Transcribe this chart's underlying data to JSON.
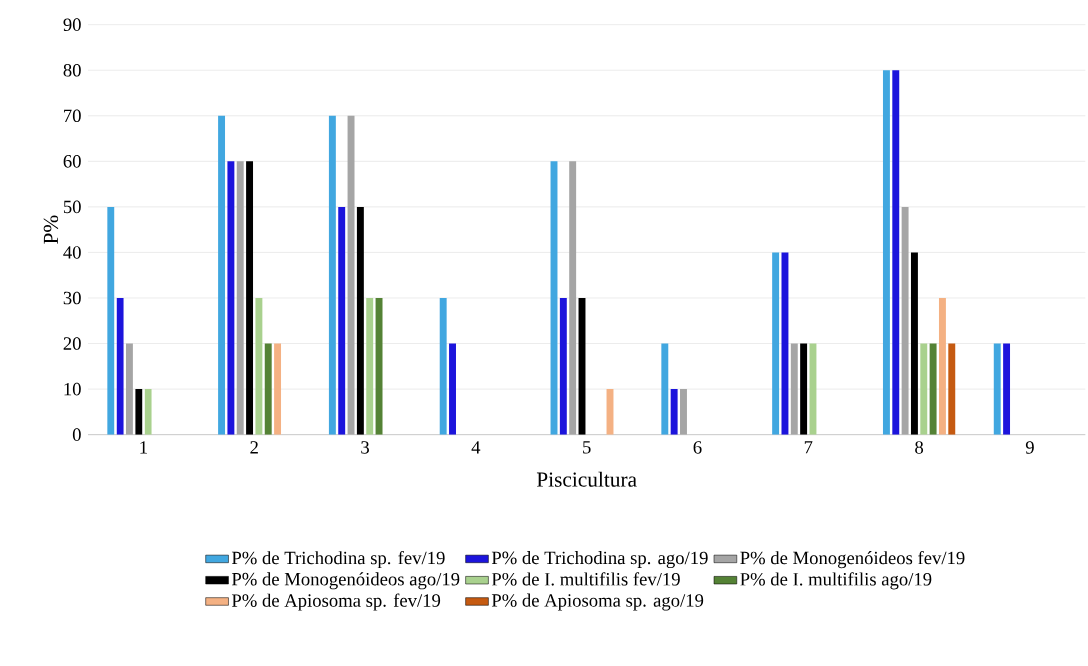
{
  "chart_data": {
    "type": "bar",
    "xlabel": "Piscicultura",
    "ylabel": "P%",
    "categories": [
      "1",
      "2",
      "3",
      "4",
      "5",
      "6",
      "7",
      "8",
      "9"
    ],
    "series": [
      {
        "name": "P% de Trichodina sp. fev/19",
        "color": "#41a7e0",
        "values": [
          50,
          70,
          70,
          30,
          60,
          20,
          40,
          80,
          20
        ]
      },
      {
        "name": "P% de Trichodina sp. ago/19",
        "color": "#1c14dc",
        "values": [
          30,
          60,
          50,
          20,
          30,
          10,
          40,
          80,
          20
        ]
      },
      {
        "name": "P% de Monogenóideos fev/19",
        "color": "#a5a5a5",
        "values": [
          20,
          60,
          70,
          0,
          60,
          10,
          20,
          50,
          0
        ]
      },
      {
        "name": "P% de Monogenóideos ago/19",
        "color": "#000000",
        "values": [
          10,
          60,
          50,
          0,
          30,
          0,
          20,
          40,
          0
        ]
      },
      {
        "name": "P% de I. multifilis fev/19",
        "color": "#a9d18e",
        "values": [
          10,
          30,
          30,
          0,
          0,
          0,
          20,
          20,
          0
        ]
      },
      {
        "name": "P% de I. multifilis ago/19",
        "color": "#548235",
        "values": [
          0,
          20,
          30,
          0,
          0,
          0,
          0,
          20,
          0
        ]
      },
      {
        "name": "P% de Apiosoma sp. fev/19",
        "color": "#f4b183",
        "values": [
          0,
          20,
          0,
          0,
          10,
          0,
          0,
          30,
          0
        ]
      },
      {
        "name": "P% de Apiosoma sp. ago/19",
        "color": "#c55a11",
        "values": [
          0,
          0,
          0,
          0,
          0,
          0,
          0,
          20,
          0
        ]
      }
    ],
    "ylim": [
      0,
      90
    ],
    "yticks": [
      0,
      10,
      20,
      30,
      40,
      50,
      60,
      70,
      80,
      90
    ],
    "grid": "y",
    "legend": "bottom"
  }
}
